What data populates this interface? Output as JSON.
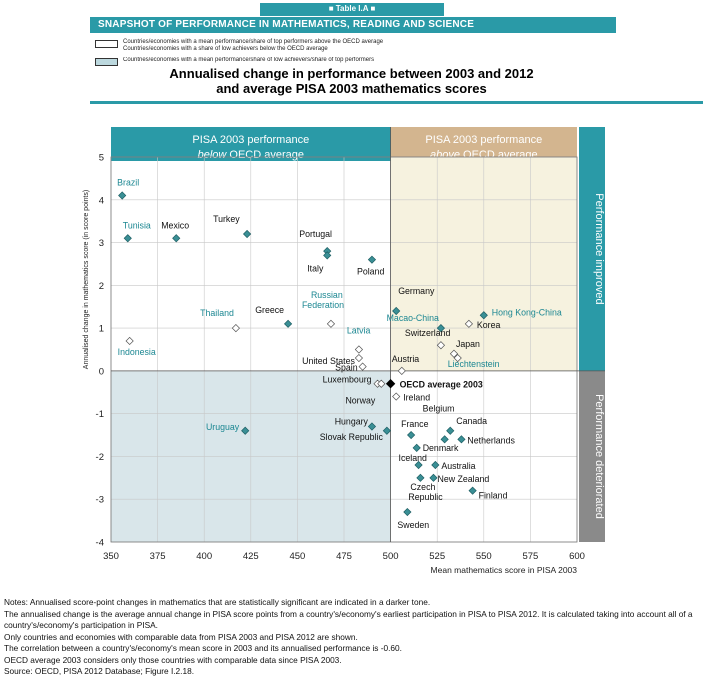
{
  "header": {
    "table_label": "Table I.A",
    "banner": "SNAPSHOT OF PERFORMANCE IN MATHEMATICS, READING AND SCIENCE"
  },
  "legend": [
    {
      "text": "Countries/economies with a mean performance/share of top performers above the OECD average",
      "fill": "#ffffff"
    },
    {
      "text": "Countries/economies with a share of low achievers below the OECD average",
      "fill": "#ffffff"
    },
    {
      "text": "Countries/economies with a mean performance/share of low achievers/share of top performers",
      "fill": "#bcd8de"
    }
  ],
  "title_line1": "Annualised change in performance between 2003 and 2012",
  "title_line2": "and average PISA 2003 mathematics scores",
  "colors": {
    "teal": "#2a9aa7",
    "diamond": "#3a8f95",
    "tan": "#d3b58f",
    "gray": "#8a8a8a",
    "below_quad": "#d9e6ea",
    "above_quad": "#f6f2df"
  },
  "chart_data": {
    "type": "scatter",
    "title": "Annualised change in performance between 2003 and 2012 and average PISA 2003 mathematics scores",
    "xlabel": "Mean mathematics score in PISA 2003",
    "ylabel": "Annualised change in mathematics score (in score points)",
    "xlim": [
      350,
      600
    ],
    "ylim": [
      -4,
      5
    ],
    "xticks": [
      350,
      375,
      400,
      425,
      450,
      475,
      500,
      525,
      550,
      575,
      600
    ],
    "yticks": [
      -4,
      -3,
      -2,
      -1,
      0,
      1,
      2,
      3,
      4,
      5
    ],
    "oecd_average_x": 500,
    "grid": true,
    "top_labels": {
      "left_line1": "PISA 2003 performance",
      "left_em": "below",
      "left_rest": " OECD average",
      "right_line1": "PISA 2003 performance",
      "right_em": "above",
      "right_rest": " OECD average"
    },
    "side_labels": {
      "top": "Performance improved",
      "bottom": "Performance deteriorated"
    },
    "points": [
      {
        "name": "Brazil",
        "x": 356,
        "y": 4.1,
        "sig": true,
        "teal": true
      },
      {
        "name": "Tunisia",
        "x": 359,
        "y": 3.1,
        "sig": true,
        "teal": true
      },
      {
        "name": "Mexico",
        "x": 385,
        "y": 3.1,
        "sig": true,
        "teal": false
      },
      {
        "name": "Turkey",
        "x": 423,
        "y": 3.2,
        "sig": true,
        "teal": false
      },
      {
        "name": "Portugal",
        "x": 466,
        "y": 2.8,
        "sig": true,
        "teal": false
      },
      {
        "name": "Italy",
        "x": 466,
        "y": 2.7,
        "sig": true,
        "teal": false
      },
      {
        "name": "Poland",
        "x": 490,
        "y": 2.6,
        "sig": true,
        "teal": false
      },
      {
        "name": "Indonesia",
        "x": 360,
        "y": 0.7,
        "sig": false,
        "teal": true
      },
      {
        "name": "Thailand",
        "x": 417,
        "y": 1.0,
        "sig": false,
        "teal": true
      },
      {
        "name": "Greece",
        "x": 445,
        "y": 1.1,
        "sig": true,
        "teal": false
      },
      {
        "name": "Russian Federation",
        "x": 468,
        "y": 1.1,
        "sig": false,
        "teal": true
      },
      {
        "name": "Latvia",
        "x": 483,
        "y": 0.5,
        "sig": false,
        "teal": true
      },
      {
        "name": "United States",
        "x": 483,
        "y": 0.3,
        "sig": false,
        "teal": false
      },
      {
        "name": "Spain",
        "x": 485,
        "y": 0.1,
        "sig": false,
        "teal": false
      },
      {
        "name": "Germany",
        "x": 503,
        "y": 1.4,
        "sig": true,
        "teal": false
      },
      {
        "name": "Macao-China",
        "x": 527,
        "y": 1.0,
        "sig": true,
        "teal": true
      },
      {
        "name": "Hong Kong-China",
        "x": 550,
        "y": 1.3,
        "sig": true,
        "teal": true
      },
      {
        "name": "Korea",
        "x": 542,
        "y": 1.1,
        "sig": false,
        "teal": false
      },
      {
        "name": "Switzerland",
        "x": 527,
        "y": 0.6,
        "sig": false,
        "teal": false
      },
      {
        "name": "Japan",
        "x": 534,
        "y": 0.4,
        "sig": false,
        "teal": false
      },
      {
        "name": "Liechtenstein",
        "x": 536,
        "y": 0.3,
        "sig": false,
        "teal": true
      },
      {
        "name": "Austria",
        "x": 506,
        "y": 0.0,
        "sig": false,
        "teal": false
      },
      {
        "name": "Luxembourg",
        "x": 493,
        "y": -0.3,
        "sig": false,
        "teal": false
      },
      {
        "name": "Norway",
        "x": 495,
        "y": -0.3,
        "sig": false,
        "teal": false
      },
      {
        "name": "Ireland",
        "x": 503,
        "y": -0.6,
        "sig": false,
        "teal": false
      },
      {
        "name": "OECD average 2003",
        "x": 500,
        "y": -0.3,
        "sig": true,
        "teal": false,
        "oecd": true
      },
      {
        "name": "Uruguay",
        "x": 422,
        "y": -1.4,
        "sig": true,
        "teal": true
      },
      {
        "name": "Hungary",
        "x": 490,
        "y": -1.3,
        "sig": true,
        "teal": false
      },
      {
        "name": "Slovak Republic",
        "x": 498,
        "y": -1.4,
        "sig": true,
        "teal": false
      },
      {
        "name": "France",
        "x": 511,
        "y": -1.5,
        "sig": true,
        "teal": false
      },
      {
        "name": "Belgium",
        "x": 529,
        "y": -1.6,
        "sig": true,
        "teal": false
      },
      {
        "name": "Canada",
        "x": 532,
        "y": -1.4,
        "sig": true,
        "teal": false
      },
      {
        "name": "Netherlands",
        "x": 538,
        "y": -1.6,
        "sig": true,
        "teal": false
      },
      {
        "name": "Denmark",
        "x": 514,
        "y": -1.8,
        "sig": true,
        "teal": false
      },
      {
        "name": "Iceland",
        "x": 515,
        "y": -2.2,
        "sig": true,
        "teal": false
      },
      {
        "name": "Australia",
        "x": 524,
        "y": -2.2,
        "sig": true,
        "teal": false
      },
      {
        "name": "New Zealand",
        "x": 523,
        "y": -2.5,
        "sig": true,
        "teal": false
      },
      {
        "name": "Czech Republic",
        "x": 516,
        "y": -2.5,
        "sig": true,
        "teal": false
      },
      {
        "name": "Finland",
        "x": 544,
        "y": -2.8,
        "sig": true,
        "teal": false
      },
      {
        "name": "Sweden",
        "x": 509,
        "y": -3.3,
        "sig": true,
        "teal": false
      }
    ]
  },
  "notes": [
    "Notes: Annualised score-point changes in mathematics that are statistically significant are indicated in a darker tone.",
    "The annualised change is the average annual change in PISA score points from a country's/economy's earliest participation in PISA to PISA 2012. It is calculated taking into account all of a country's/economy's participation in PISA.",
    "Only countries and economies with comparable data from PISA 2003 and PISA 2012 are shown.",
    "The correlation between a country's/economy's mean score in 2003 and its annualised performance is -0.60.",
    "OECD average 2003 considers only those countries with comparable data since PISA 2003.",
    "Source: OECD, PISA 2012 Database; Figure I.2.18."
  ]
}
